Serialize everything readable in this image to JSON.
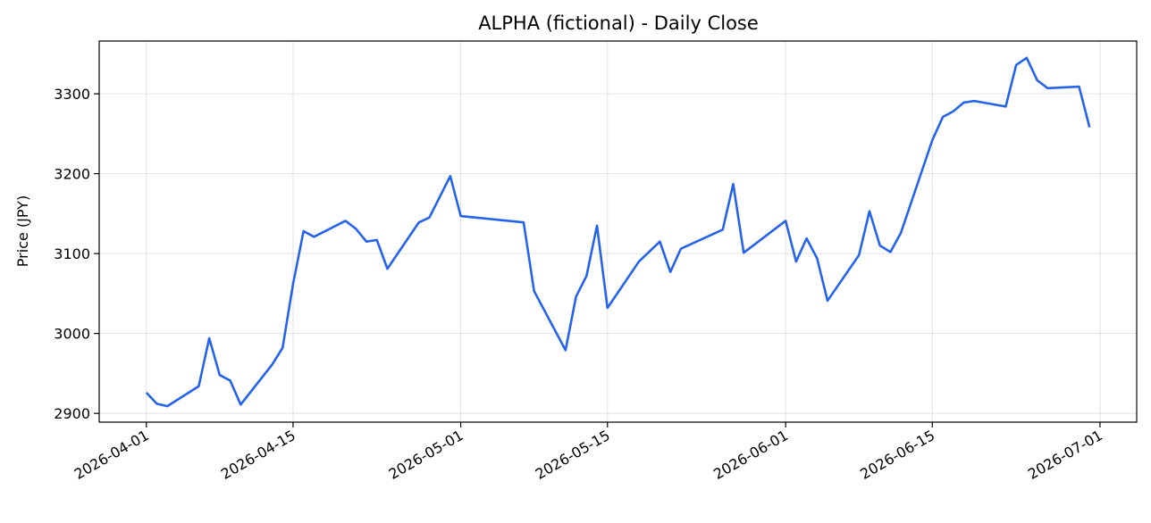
{
  "chart_data": {
    "type": "line",
    "title": "ALPHA (fictional) - Daily Close",
    "y_label": "Price (JPY)",
    "x": [
      "2026-04-01",
      "2026-04-02",
      "2026-04-03",
      "2026-04-06",
      "2026-04-07",
      "2026-04-08",
      "2026-04-09",
      "2026-04-10",
      "2026-04-13",
      "2026-04-14",
      "2026-04-15",
      "2026-04-16",
      "2026-04-17",
      "2026-04-20",
      "2026-04-21",
      "2026-04-22",
      "2026-04-23",
      "2026-04-24",
      "2026-04-27",
      "2026-04-28",
      "2026-04-30",
      "2026-05-01",
      "2026-05-07",
      "2026-05-08",
      "2026-05-11",
      "2026-05-12",
      "2026-05-13",
      "2026-05-14",
      "2026-05-15",
      "2026-05-18",
      "2026-05-20",
      "2026-05-21",
      "2026-05-22",
      "2026-05-26",
      "2026-05-27",
      "2026-05-28",
      "2026-06-01",
      "2026-06-02",
      "2026-06-03",
      "2026-06-04",
      "2026-06-05",
      "2026-06-08",
      "2026-06-09",
      "2026-06-10",
      "2026-06-11",
      "2026-06-12",
      "2026-06-15",
      "2026-06-16",
      "2026-06-17",
      "2026-06-18",
      "2026-06-19",
      "2026-06-22",
      "2026-06-23",
      "2026-06-24",
      "2026-06-25",
      "2026-06-26",
      "2026-06-29",
      "2026-06-30"
    ],
    "series": [
      {
        "name": "Close",
        "color": "#2563eb",
        "values": [
          2926,
          2912,
          2909,
          2934,
          2994,
          2948,
          2941,
          2911,
          2961,
          2982,
          3062,
          3128,
          3121,
          3141,
          3131,
          3115,
          3117,
          3081,
          3139,
          3145,
          3197,
          3147,
          3139,
          3053,
          2979,
          3046,
          3072,
          3135,
          3032,
          3090,
          3115,
          3077,
          3106,
          3130,
          3187,
          3101,
          3141,
          3090,
          3119,
          3094,
          3041,
          3098,
          3153,
          3110,
          3102,
          3126,
          3242,
          3271,
          3278,
          3289,
          3291,
          3284,
          3336,
          3345,
          3317,
          3307,
          3309,
          3258
        ]
      }
    ],
    "xlim": [
      "2026-03-27T12:00Z",
      "2026-07-04T12:00Z"
    ],
    "xticks": [
      "2026-04-01",
      "2026-04-15",
      "2026-05-01",
      "2026-05-15",
      "2026-06-01",
      "2026-06-15",
      "2026-07-01"
    ],
    "ylim": [
      2889,
      3366
    ],
    "yticks": [
      2900,
      3000,
      3100,
      3200,
      3300
    ],
    "grid": true
  }
}
